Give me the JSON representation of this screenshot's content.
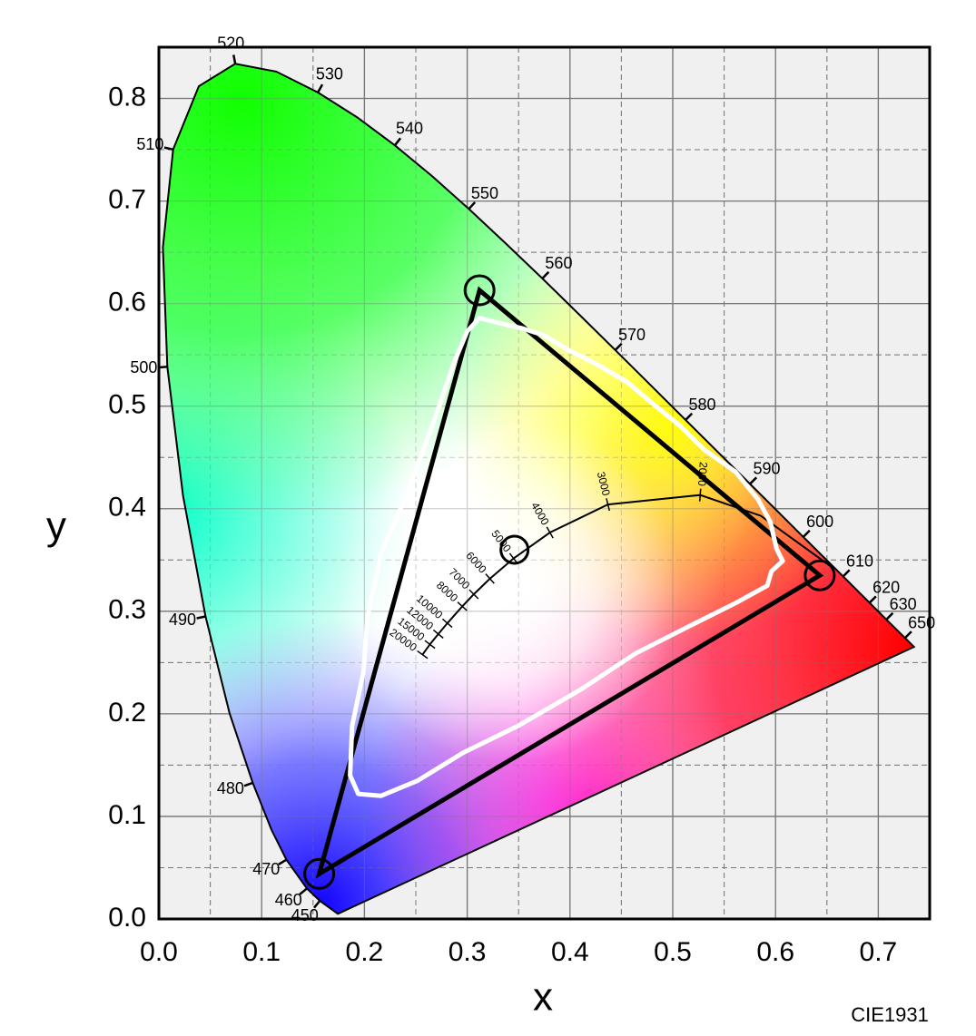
{
  "chart_data": {
    "type": "chromaticity",
    "xlabel": "x",
    "ylabel": "y",
    "note": "CIE1931",
    "xlim": [
      0,
      0.75
    ],
    "ylim": [
      0,
      0.85
    ],
    "xticks": [
      {
        "value": 0,
        "label": "0.0"
      },
      {
        "value": 0.1,
        "label": "0.1"
      },
      {
        "value": 0.2,
        "label": "0.2"
      },
      {
        "value": 0.3,
        "label": "0.3"
      },
      {
        "value": 0.4,
        "label": "0.4"
      },
      {
        "value": 0.5,
        "label": "0.5"
      },
      {
        "value": 0.6,
        "label": "0.6"
      },
      {
        "value": 0.7,
        "label": "0.7"
      }
    ],
    "yticks": [
      {
        "value": 0,
        "label": "0.0"
      },
      {
        "value": 0.1,
        "label": "0.1"
      },
      {
        "value": 0.2,
        "label": "0.2"
      },
      {
        "value": 0.3,
        "label": "0.3"
      },
      {
        "value": 0.4,
        "label": "0.4"
      },
      {
        "value": 0.5,
        "label": "0.5"
      },
      {
        "value": 0.6,
        "label": "0.6"
      },
      {
        "value": 0.7,
        "label": "0.7"
      },
      {
        "value": 0.8,
        "label": "0.8"
      }
    ],
    "xminor": [
      0.05,
      0.15,
      0.25,
      0.35,
      0.45,
      0.55,
      0.65
    ],
    "yminor": [
      0.05,
      0.15,
      0.25,
      0.35,
      0.45,
      0.55,
      0.65,
      0.75
    ],
    "grid": true,
    "spectral_locus": {
      "color": "#000000",
      "wavelengths": [
        null,
        450,
        460,
        470,
        null,
        480,
        null,
        490,
        null,
        500,
        null,
        510,
        null,
        520,
        null,
        530,
        null,
        540,
        null,
        550,
        null,
        560,
        null,
        570,
        null,
        580,
        null,
        590,
        null,
        600,
        null,
        610,
        620,
        630,
        650,
        null
      ],
      "x": [
        0.1741,
        0.1566,
        0.144,
        0.1241,
        0.1096,
        0.0913,
        0.0687,
        0.0454,
        0.0235,
        0.0082,
        0.0039,
        0.0139,
        0.0389,
        0.0743,
        0.1142,
        0.1547,
        0.1929,
        0.2296,
        0.2658,
        0.3016,
        0.3373,
        0.3731,
        0.4087,
        0.4441,
        0.4788,
        0.5125,
        0.5448,
        0.5752,
        0.6029,
        0.627,
        0.6482,
        0.6658,
        0.6915,
        0.7079,
        0.726,
        0.7347
      ],
      "y": [
        0.005,
        0.0177,
        0.0297,
        0.0578,
        0.0868,
        0.1327,
        0.2007,
        0.295,
        0.4127,
        0.5384,
        0.6548,
        0.7502,
        0.812,
        0.8338,
        0.8262,
        0.8059,
        0.7816,
        0.7543,
        0.7243,
        0.6923,
        0.6589,
        0.6245,
        0.5896,
        0.5547,
        0.5202,
        0.4866,
        0.4544,
        0.4242,
        0.3965,
        0.3725,
        0.3514,
        0.334,
        0.3083,
        0.292,
        0.274,
        0.2653
      ]
    },
    "planckian_locus": {
      "color": "#000000",
      "cct": [
        null,
        null,
        2000,
        3000,
        4000,
        5000,
        6000,
        7000,
        8000,
        10000,
        12000,
        15000,
        20000
      ],
      "x": [
        0.6528,
        0.5857,
        0.5267,
        0.4369,
        0.3805,
        0.3451,
        0.3221,
        0.3064,
        0.2952,
        0.2807,
        0.2719,
        0.2637,
        0.2565
      ],
      "y": [
        0.3444,
        0.3931,
        0.4133,
        0.4041,
        0.3768,
        0.3516,
        0.3318,
        0.3166,
        0.3048,
        0.2884,
        0.2778,
        0.2677,
        0.2577
      ]
    },
    "gamut": {
      "color": "#ffffff",
      "x": [
        0.312,
        0.327,
        0.353,
        0.375,
        0.398,
        0.424,
        0.455,
        0.481,
        0.508,
        0.53,
        0.561,
        0.583,
        0.595,
        0.601,
        0.607,
        0.596,
        0.592,
        0.561,
        0.517,
        0.464,
        0.411,
        0.349,
        0.296,
        0.252,
        0.216,
        0.194,
        0.186,
        0.188,
        0.199,
        0.203,
        0.216,
        0.243,
        0.269,
        0.287,
        0.3
      ],
      "y": [
        0.586,
        0.582,
        0.576,
        0.569,
        0.555,
        0.542,
        0.524,
        0.502,
        0.48,
        0.458,
        0.436,
        0.409,
        0.387,
        0.361,
        0.349,
        0.339,
        0.325,
        0.308,
        0.286,
        0.259,
        0.224,
        0.188,
        0.162,
        0.135,
        0.12,
        0.122,
        0.14,
        0.188,
        0.241,
        0.294,
        0.356,
        0.418,
        0.489,
        0.542,
        0.573
      ]
    },
    "primaries": {
      "color": "#000000",
      "x": [
        0.643,
        0.312,
        0.156
      ],
      "y": [
        0.335,
        0.613,
        0.044
      ]
    },
    "white_point": {
      "color": "#000000",
      "x": 0.346,
      "y": 0.36
    }
  }
}
